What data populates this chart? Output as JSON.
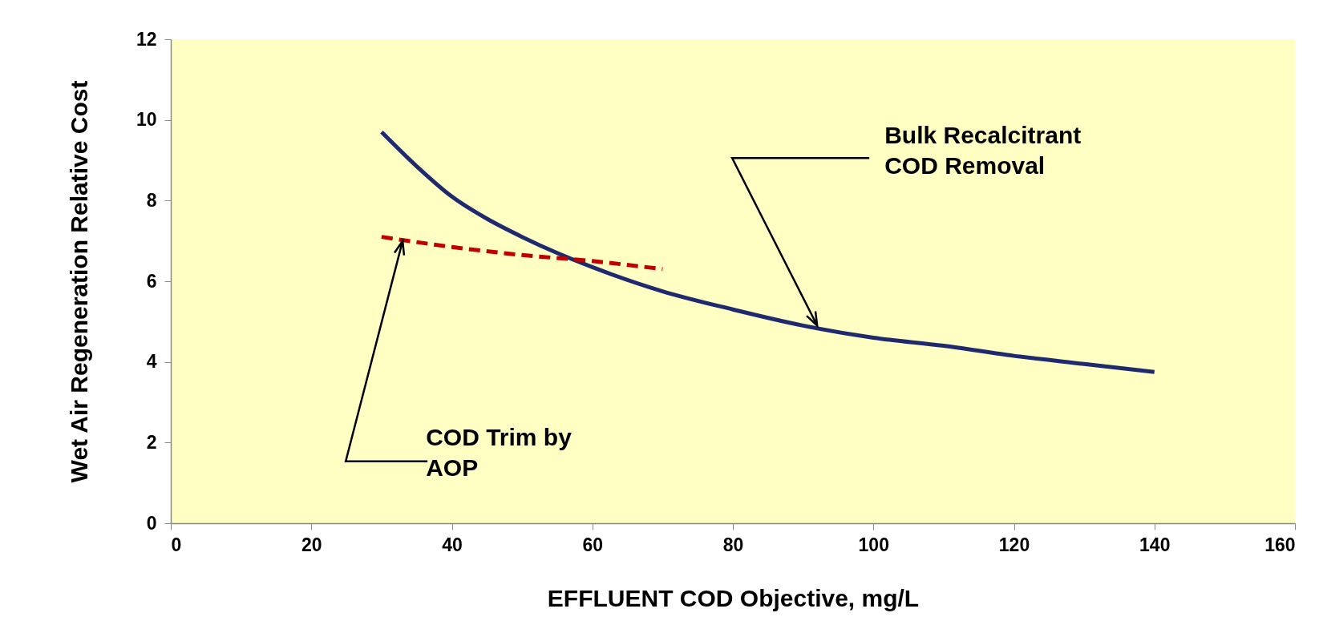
{
  "chart_data": {
    "type": "line",
    "xlabel": "EFFLUENT COD Objective, mg/L",
    "ylabel": "Wet Air  Regeneration Relative Cost",
    "xlim": [
      0,
      160
    ],
    "xticks": [
      0,
      20,
      40,
      60,
      80,
      100,
      120,
      140,
      160
    ],
    "ylim": [
      0,
      12
    ],
    "yticks": [
      0,
      2,
      4,
      6,
      8,
      10,
      12
    ],
    "grid": false,
    "legend": false,
    "marker": "none",
    "series": [
      {
        "color": "#1f2a6e",
        "line_style": "solid",
        "x": [
          30,
          35,
          40,
          45,
          50,
          55,
          60,
          70,
          80,
          90,
          100,
          110,
          120,
          130,
          140
        ],
        "values": [
          9.7,
          8.85,
          8.1,
          7.55,
          7.1,
          6.7,
          6.35,
          5.75,
          5.3,
          4.9,
          4.6,
          4.4,
          4.15,
          3.95,
          3.75
        ]
      },
      {
        "color": "#c00000",
        "line_style": "dashed",
        "x": [
          30,
          40,
          50,
          60,
          70
        ],
        "values": [
          7.1,
          6.85,
          6.65,
          6.5,
          6.3
        ]
      }
    ],
    "annotations": [
      {
        "text": "Bulk Recalcitrant\nCOD Removal",
        "x": 92,
        "y": 4.9
      },
      {
        "text": "COD Trim by\nAOP",
        "x": 33,
        "y": 7.0
      }
    ]
  }
}
